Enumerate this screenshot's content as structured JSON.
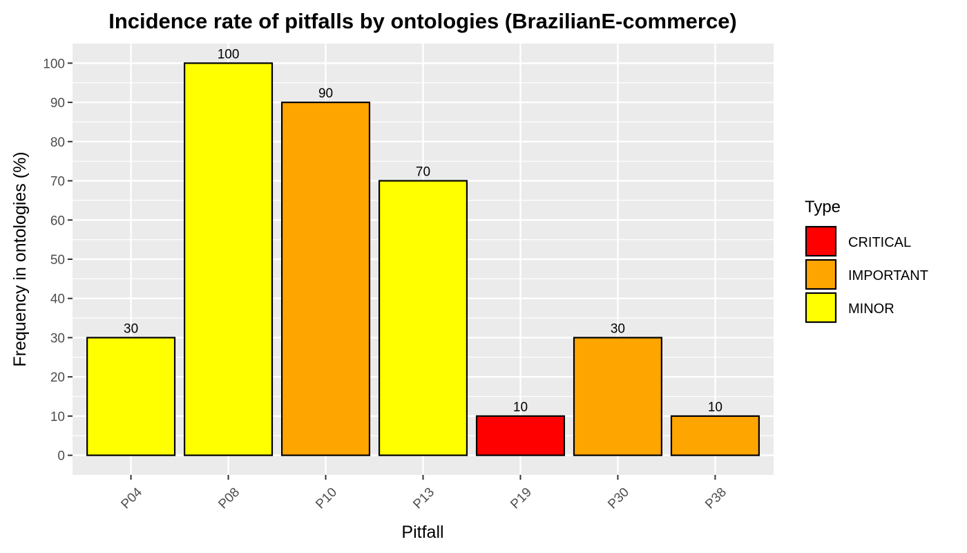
{
  "chart_data": {
    "type": "bar",
    "title": "Incidence rate of pitfalls by ontologies (BrazilianE-commerce)",
    "xlabel": "Pitfall",
    "ylabel": "Frequency in ontologies (%)",
    "categories": [
      "P04",
      "P08",
      "P10",
      "P13",
      "P19",
      "P30",
      "P38"
    ],
    "values": [
      30,
      100,
      90,
      70,
      10,
      30,
      10
    ],
    "types": [
      "MINOR",
      "MINOR",
      "IMPORTANT",
      "MINOR",
      "CRITICAL",
      "IMPORTANT",
      "IMPORTANT"
    ],
    "ylim": [
      -5,
      105
    ],
    "yticks": [
      0,
      10,
      20,
      30,
      40,
      50,
      60,
      70,
      80,
      90,
      100
    ],
    "grid": true,
    "legend": {
      "title": "Type",
      "placement": "right",
      "entries": [
        {
          "label": "CRITICAL",
          "color": "#ff0000"
        },
        {
          "label": "IMPORTANT",
          "color": "#ffa500"
        },
        {
          "label": "MINOR",
          "color": "#ffff00"
        }
      ]
    },
    "colors": {
      "panel_background": "#ebebeb",
      "grid_line": "#ffffff",
      "bar_outline": "#000000"
    }
  }
}
